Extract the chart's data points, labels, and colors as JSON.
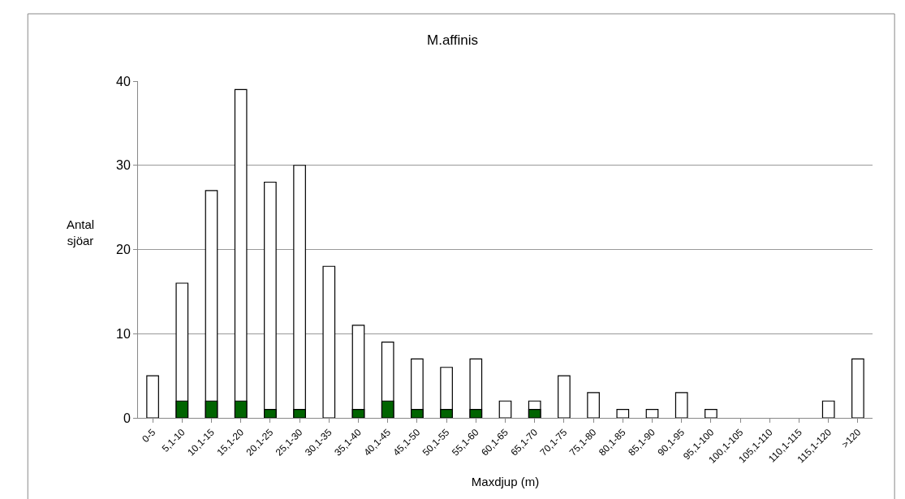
{
  "chart_data": {
    "type": "bar",
    "title": "M.affinis",
    "xlabel": "Maxdjup (m)",
    "ylabel": "Antal sjöar",
    "categories": [
      "0-5",
      "5,1-10",
      "10,1-15",
      "15,1-20",
      "20,1-25",
      "25,1-30",
      "30,1-35",
      "35,1-40",
      "40,1-45",
      "45,1-50",
      "50,1-55",
      "55,1-60",
      "60,1-65",
      "65,1-70",
      "70,1-75",
      "75,1-80",
      "80,1-85",
      "85,1-90",
      "90,1-95",
      "95,1-100",
      "100,1-105",
      "105,1-110",
      "110,1-115",
      "115,1-120",
      ">120"
    ],
    "series": [
      {
        "color": "#ffffff",
        "values": [
          5,
          16,
          27,
          39,
          28,
          30,
          18,
          11,
          9,
          7,
          6,
          7,
          2,
          2,
          5,
          3,
          1,
          1,
          3,
          1,
          0,
          0,
          0,
          2,
          7
        ]
      },
      {
        "color": "#006400",
        "values": [
          0,
          2,
          2,
          2,
          1,
          1,
          0,
          1,
          2,
          1,
          1,
          1,
          0,
          1,
          0,
          0,
          0,
          0,
          0,
          0,
          0,
          0,
          0,
          0,
          0
        ]
      }
    ],
    "ylim": [
      0,
      40
    ],
    "yticks": [
      0,
      10,
      20,
      30,
      40
    ],
    "grid": "y"
  }
}
